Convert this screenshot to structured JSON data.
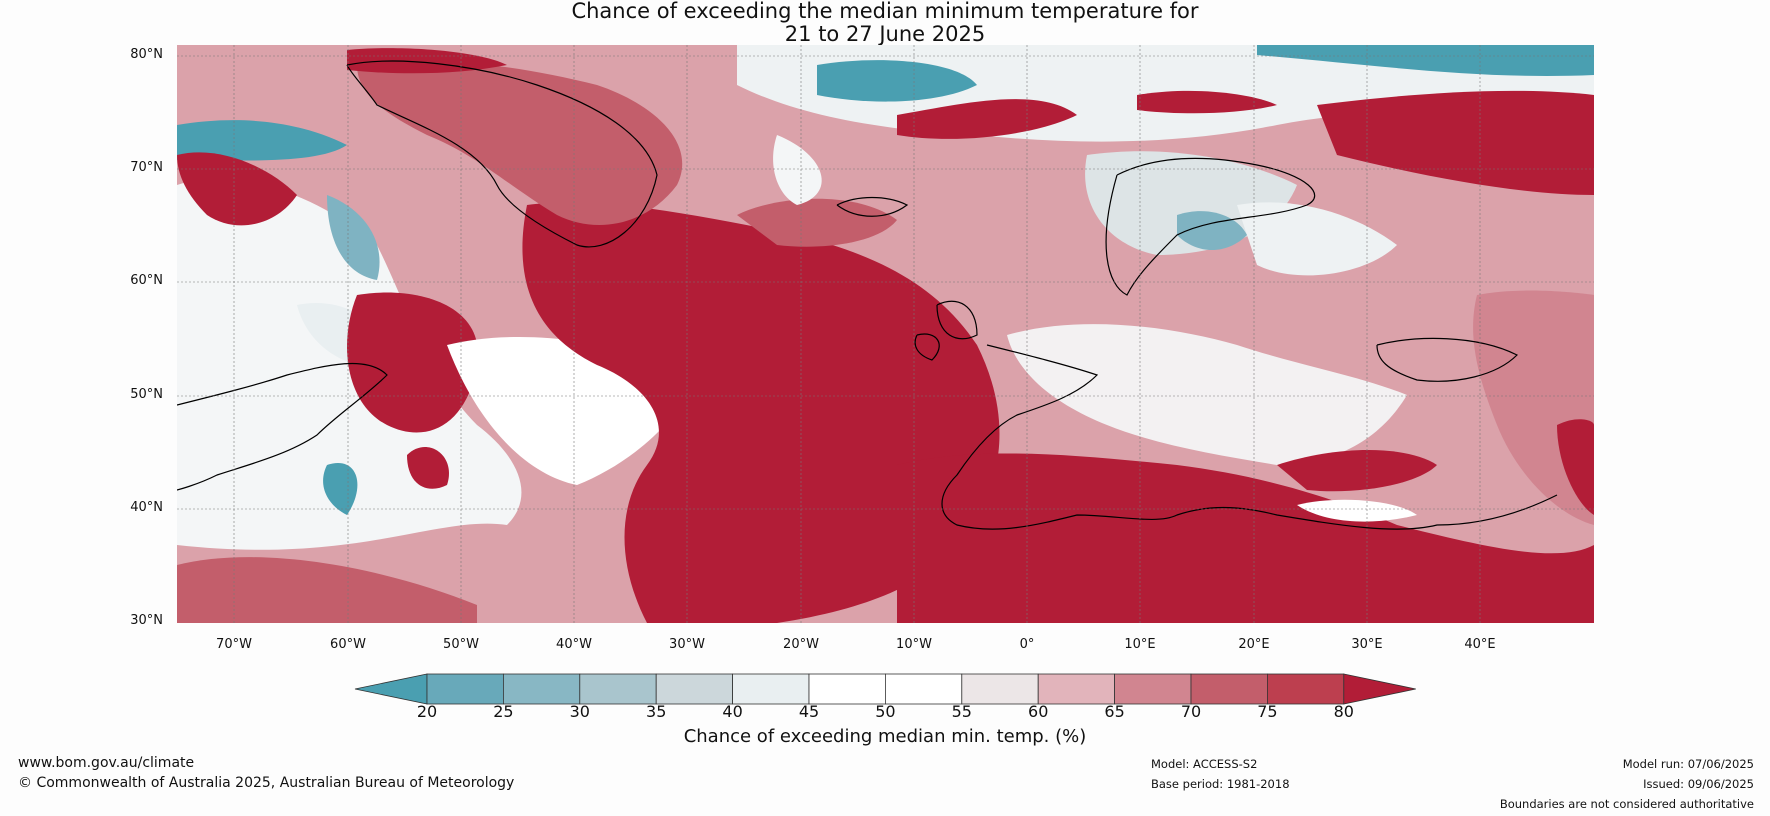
{
  "title_line1": "Chance of exceeding the median minimum temperature for",
  "title_line2": "21 to 27 June 2025",
  "lat_labels": [
    "80°N",
    "70°N",
    "60°N",
    "50°N",
    "40°N",
    "30°N"
  ],
  "lon_labels": [
    "70°W",
    "60°W",
    "50°W",
    "40°W",
    "30°W",
    "20°W",
    "10°W",
    "0°",
    "10°E",
    "20°E",
    "30°E",
    "40°E"
  ],
  "colorbar": {
    "ticks": [
      "20",
      "25",
      "30",
      "35",
      "40",
      "45",
      "50",
      "55",
      "60",
      "65",
      "70",
      "75",
      "80"
    ],
    "label": "Chance of exceeding median min. temp. (%)",
    "colors": [
      "#4a9fb1",
      "#68a9ba",
      "#88b7c4",
      "#a9c5cd",
      "#ccd7db",
      "#e9eff1",
      "#ffffff",
      "#ffffff",
      "#ece6e7",
      "#e2b4bb",
      "#d18590",
      "#c35e6b",
      "#bd3f4f",
      "#b21d37"
    ]
  },
  "footer": {
    "website": "www.bom.gov.au/climate",
    "copyright": "© Commonwealth of Australia 2025, Australian Bureau of Meteorology",
    "model": "Model: ACCESS-S2",
    "base_period": "Base period: 1981-2018",
    "model_run": "Model run: 07/06/2025",
    "issued": "Issued: 09/06/2025",
    "disclaimer": "Boundaries are not considered authoritative"
  }
}
